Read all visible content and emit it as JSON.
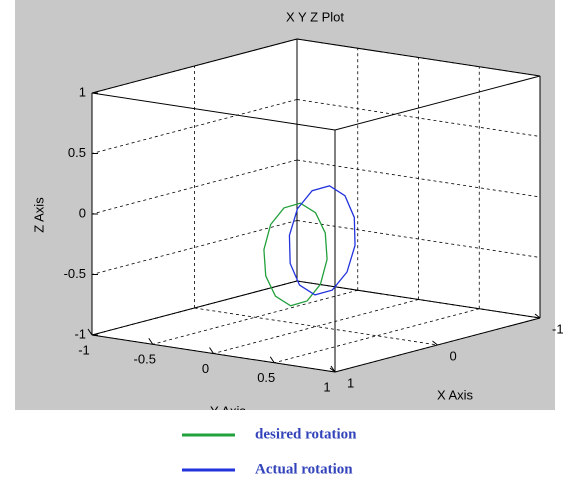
{
  "chart_data": {
    "type": "line3d",
    "title": "X Y Z Plot",
    "xlabel": "X Axis",
    "ylabel": "Y Axis",
    "zlabel": "Z Axis",
    "xlim": [
      -1,
      1
    ],
    "ylim": [
      -1,
      1
    ],
    "zlim": [
      -1,
      1
    ],
    "xticks": [
      -1,
      0,
      1
    ],
    "yticks": [
      -1,
      -0.5,
      0,
      0.5,
      1
    ],
    "zticks": [
      -1,
      -0.5,
      0,
      0.5,
      1
    ],
    "grid": true,
    "series": [
      {
        "name": "desired rotation",
        "color": "#22a03c",
        "x": [
          0.2,
          0.2,
          0.2,
          0.2,
          0.2,
          0.2,
          0.2,
          0.2,
          0.2,
          0.2,
          0.2,
          0.2,
          0.2
        ],
        "y": [
          0.26,
          0.245,
          0.165,
          0.04,
          -0.095,
          -0.205,
          -0.26,
          -0.245,
          -0.165,
          -0.04,
          0.095,
          0.205,
          0.26
        ],
        "z": [
          -0.36,
          -0.145,
          0.01,
          0.07,
          0.01,
          -0.145,
          -0.36,
          -0.575,
          -0.73,
          -0.79,
          -0.73,
          -0.575,
          -0.36
        ]
      },
      {
        "name": "Actual rotation",
        "color": "#2233dd",
        "x": [
          0.2,
          0.2,
          0.2,
          0.2,
          0.2,
          0.2,
          0.2,
          0.2,
          0.2,
          0.2,
          0.2,
          0.2,
          0.2
        ],
        "y": [
          0.49,
          0.484,
          0.407,
          0.28,
          0.137,
          0.016,
          -0.05,
          -0.044,
          0.033,
          0.16,
          0.303,
          0.424,
          0.49
        ],
        "z": [
          -0.21,
          0.02,
          0.188,
          0.25,
          0.188,
          0.02,
          -0.21,
          -0.44,
          -0.608,
          -0.67,
          -0.608,
          -0.44,
          -0.21
        ]
      }
    ]
  }
}
